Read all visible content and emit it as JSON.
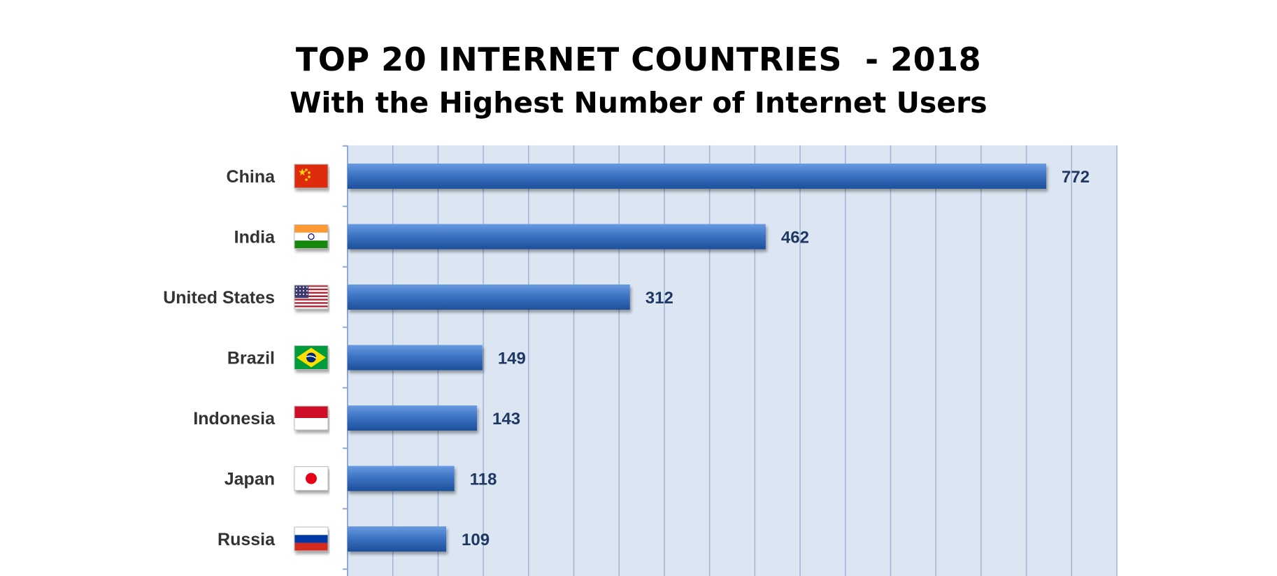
{
  "title": "TOP 20 INTERNET COUNTRIES  - 2018",
  "subtitle": "With the Highest Number of Internet Users",
  "colors": {
    "plot_background": "#dce6f2",
    "gridline": "#9db6d8",
    "bar_light": "#4d86d1",
    "bar_dark": "#1d4f9a",
    "value_text": "#1f3763"
  },
  "chart_data": {
    "type": "bar",
    "orientation": "horizontal",
    "title": "TOP 20 INTERNET COUNTRIES  - 2018",
    "subtitle": "With the Highest Number of Internet Users",
    "categories": [
      "China",
      "India",
      "United States",
      "Brazil",
      "Indonesia",
      "Japan",
      "Russia"
    ],
    "flags": [
      "china-flag-icon",
      "india-flag-icon",
      "usa-flag-icon",
      "brazil-flag-icon",
      "indonesia-flag-icon",
      "japan-flag-icon",
      "russia-flag-icon"
    ],
    "values": [
      772,
      462,
      312,
      149,
      143,
      118,
      109
    ],
    "value_labels": [
      "772",
      "462",
      "312",
      "149",
      "143",
      "118",
      "109"
    ],
    "xlim": [
      0,
      850
    ],
    "grid": true,
    "xlabel": "",
    "ylabel": ""
  }
}
